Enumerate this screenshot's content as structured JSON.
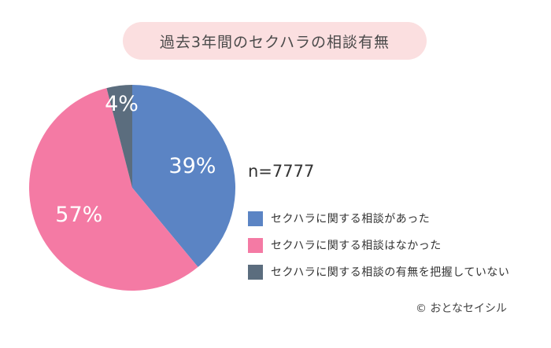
{
  "chart_data": {
    "type": "pie",
    "title": "過去3年間のセクハラの相談有無",
    "sample_size": "n=7777",
    "slices": [
      {
        "label": "セクハラに関する相談があった",
        "value": 39,
        "display": "39%",
        "color": "#5b84c4"
      },
      {
        "label": "セクハラに関する相談はなかった",
        "value": 57,
        "display": "57%",
        "color": "#f47aa4"
      },
      {
        "label": "セクハラに関する相談の有無を把握していない",
        "value": 4,
        "display": "4%",
        "color": "#5b6d7e"
      }
    ],
    "legend_position": "right"
  },
  "credit": "© おとなセイシル"
}
